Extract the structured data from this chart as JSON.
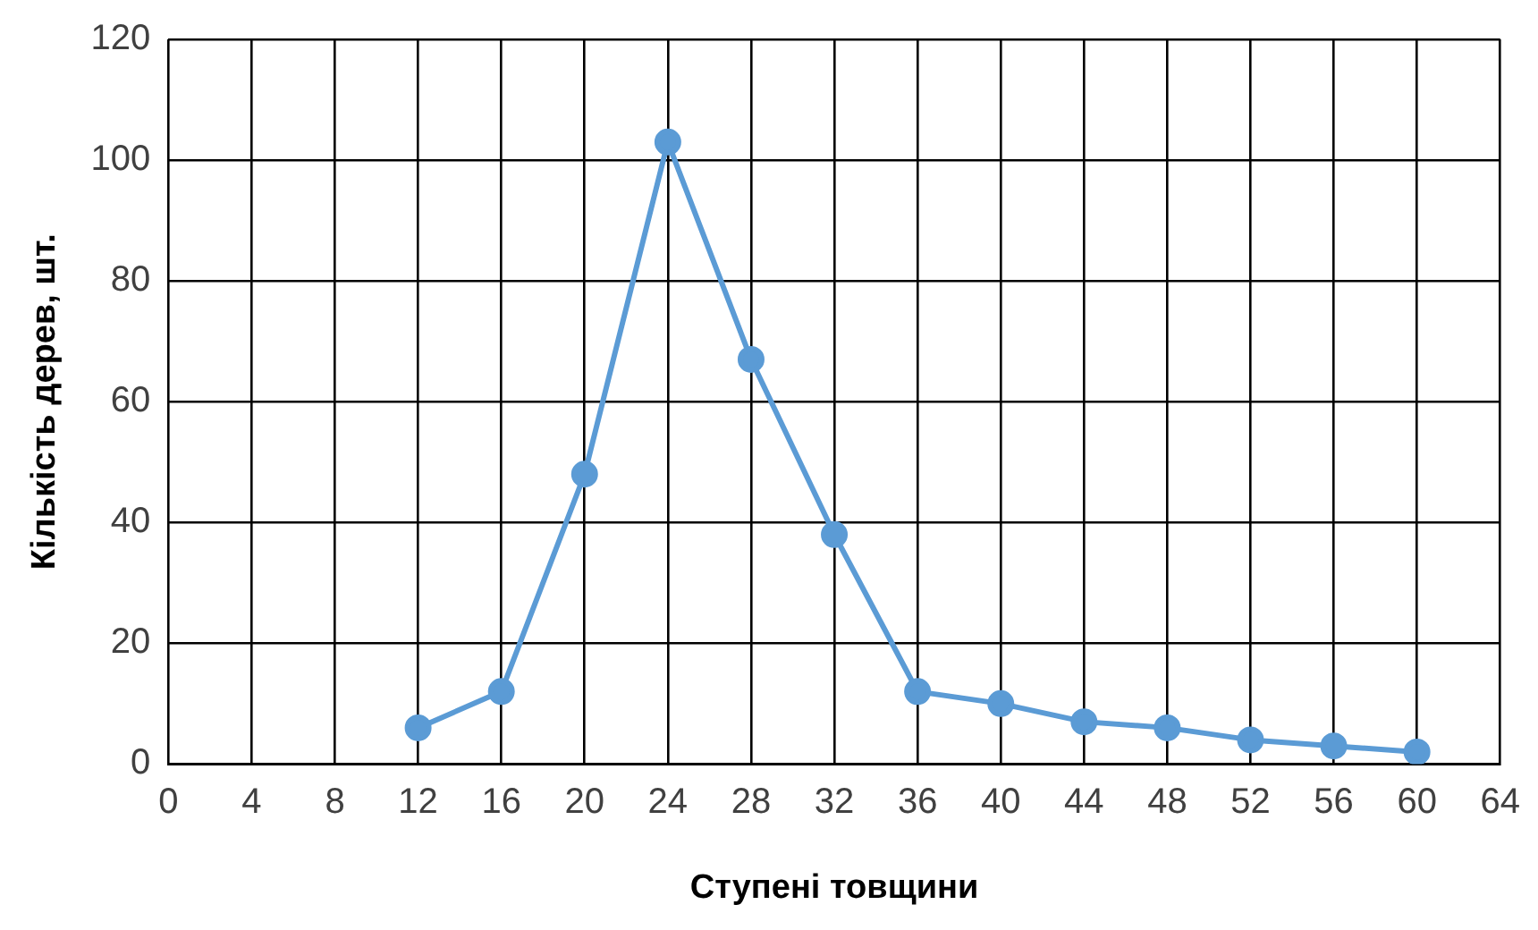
{
  "chart_data": {
    "type": "line",
    "xlabel": "Ступені товщини",
    "ylabel": "Кількість дерев, шт.",
    "x": [
      12,
      16,
      20,
      24,
      28,
      32,
      36,
      40,
      44,
      48,
      52,
      56,
      60
    ],
    "series": [
      {
        "color": "#5b9bd5",
        "values": [
          6,
          12,
          48,
          103,
          67,
          38,
          12,
          10,
          7,
          6,
          4,
          3,
          2
        ]
      }
    ],
    "xlim": [
      0,
      64
    ],
    "xticks": [
      0,
      4,
      8,
      12,
      16,
      20,
      24,
      28,
      32,
      36,
      40,
      44,
      48,
      52,
      56,
      60,
      64
    ],
    "ylim": [
      0,
      120
    ],
    "yticks": [
      0,
      20,
      40,
      60,
      80,
      100,
      120
    ],
    "grid": true,
    "legend": false,
    "marker": "circle",
    "line_style": "solid"
  }
}
